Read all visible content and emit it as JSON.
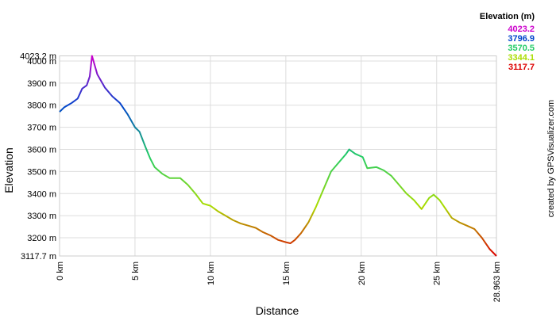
{
  "chart_data": {
    "type": "line",
    "y_label": "Elevation",
    "x_label": "Distance",
    "legend_title": "Elevation (m)",
    "credit": "created by GPSVisualizer.com",
    "color_scale": [
      {
        "value": 4023.2,
        "color": "#cc00cc"
      },
      {
        "value": 3796.9,
        "color": "#0044cc"
      },
      {
        "value": 3570.5,
        "color": "#22cc66"
      },
      {
        "value": 3344.1,
        "color": "#aadd00"
      },
      {
        "value": 3117.7,
        "color": "#dd0000"
      }
    ],
    "x": [
      0,
      0.3,
      0.8,
      1.2,
      1.5,
      1.8,
      2.0,
      2.15,
      2.5,
      3.0,
      3.5,
      4.0,
      4.5,
      5.0,
      5.3,
      5.7,
      6.0,
      6.3,
      6.8,
      7.3,
      8.0,
      8.5,
      9.0,
      9.5,
      10.0,
      10.5,
      11.0,
      11.5,
      12.0,
      12.5,
      13.0,
      13.5,
      14.0,
      14.5,
      15.0,
      15.3,
      15.6,
      16.0,
      16.5,
      17.0,
      17.5,
      18.0,
      18.5,
      19.0,
      19.2,
      19.6,
      20.1,
      20.4,
      21.0,
      21.5,
      22.0,
      22.5,
      23.0,
      23.5,
      24.0,
      24.5,
      24.8,
      25.2,
      25.7,
      26.0,
      26.5,
      27.0,
      27.5,
      28.0,
      28.5,
      28.963
    ],
    "values": [
      3770,
      3790,
      3810,
      3830,
      3875,
      3890,
      3930,
      4023.2,
      3940,
      3880,
      3840,
      3810,
      3760,
      3700,
      3680,
      3610,
      3560,
      3520,
      3490,
      3470,
      3470,
      3440,
      3400,
      3355,
      3345,
      3320,
      3300,
      3280,
      3265,
      3255,
      3245,
      3225,
      3210,
      3190,
      3180,
      3175,
      3190,
      3220,
      3270,
      3340,
      3420,
      3500,
      3540,
      3580,
      3600,
      3580,
      3565,
      3515,
      3520,
      3505,
      3480,
      3440,
      3400,
      3370,
      3330,
      3380,
      3395,
      3370,
      3320,
      3290,
      3270,
      3255,
      3240,
      3200,
      3150,
      3117.7
    ],
    "xlim": [
      0,
      28.963
    ],
    "ylim": [
      3117.7,
      4023.2
    ],
    "xticks": [
      {
        "value": 0,
        "label": "0 km"
      },
      {
        "value": 5,
        "label": "5 km"
      },
      {
        "value": 10,
        "label": "10 km"
      },
      {
        "value": 15,
        "label": "15 km"
      },
      {
        "value": 20,
        "label": "20 km"
      },
      {
        "value": 25,
        "label": "25 km"
      },
      {
        "value": 28.963,
        "label": "28.963 km"
      }
    ],
    "yticks": [
      {
        "value": 3117.7,
        "label": "3117.7 m"
      },
      {
        "value": 3200,
        "label": "3200 m"
      },
      {
        "value": 3300,
        "label": "3300 m"
      },
      {
        "value": 3400,
        "label": "3400 m"
      },
      {
        "value": 3500,
        "label": "3500 m"
      },
      {
        "value": 3600,
        "label": "3600 m"
      },
      {
        "value": 3700,
        "label": "3700 m"
      },
      {
        "value": 3800,
        "label": "3800 m"
      },
      {
        "value": 3900,
        "label": "3900 m"
      },
      {
        "value": 4000,
        "label": "4000 m"
      },
      {
        "value": 4023.2,
        "label": "4023.2 m"
      }
    ],
    "grid": true
  }
}
